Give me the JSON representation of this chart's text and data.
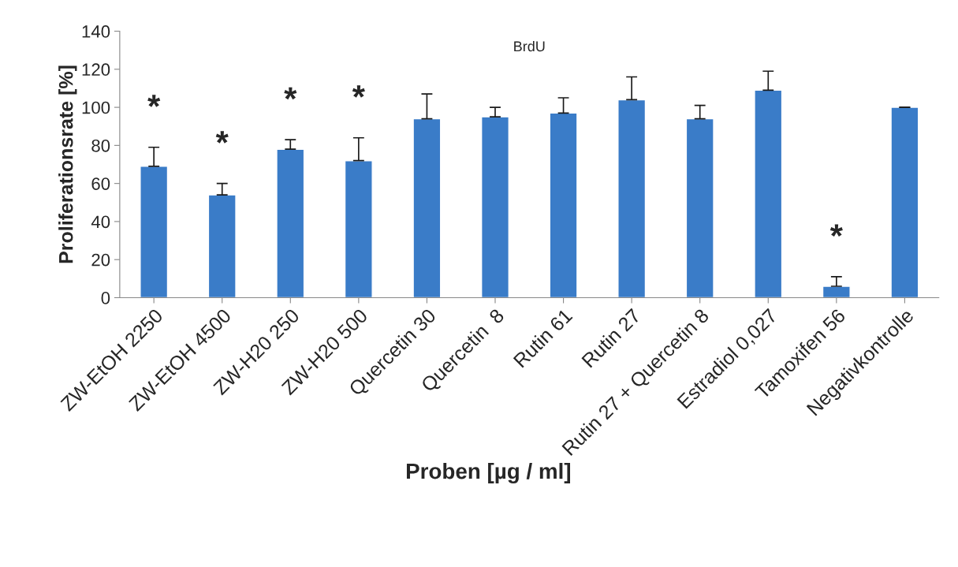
{
  "chart_data": {
    "type": "bar",
    "title": "BrdU",
    "xlabel": "Proben [µg / ml]",
    "ylabel": "Proliferationsrate [%]",
    "categories": [
      "ZW-EtOH 2250",
      "ZW-EtOH 4500",
      "ZW-H20 250",
      "ZW-H20 500",
      "Quercetin 30",
      "Quercetin  8",
      "Rutin 61",
      "Rutin 27",
      "Rutin 27 + Quercetin 8",
      "Estradiol 0,027",
      "Tamoxifen 56",
      "Negativkontrolle"
    ],
    "values": [
      69,
      54,
      78,
      72,
      94,
      95,
      97,
      104,
      94,
      109,
      6,
      100
    ],
    "errors": [
      [
        69,
        79
      ],
      [
        54,
        60
      ],
      [
        78,
        83
      ],
      [
        72,
        84
      ],
      [
        94,
        107
      ],
      [
        95,
        100
      ],
      [
        97,
        105
      ],
      [
        104,
        116
      ],
      [
        94,
        101
      ],
      [
        109,
        119
      ],
      [
        6,
        11
      ],
      [
        100,
        100
      ]
    ],
    "color": "#3a7cc8",
    "ylim": [
      0,
      140
    ],
    "yticks": [
      0,
      20,
      40,
      60,
      80,
      100,
      120,
      140
    ],
    "grid": false,
    "legend": false,
    "value_labels": [
      "*",
      "*",
      "*",
      "*",
      null,
      null,
      null,
      null,
      null,
      null,
      "*",
      null
    ]
  }
}
